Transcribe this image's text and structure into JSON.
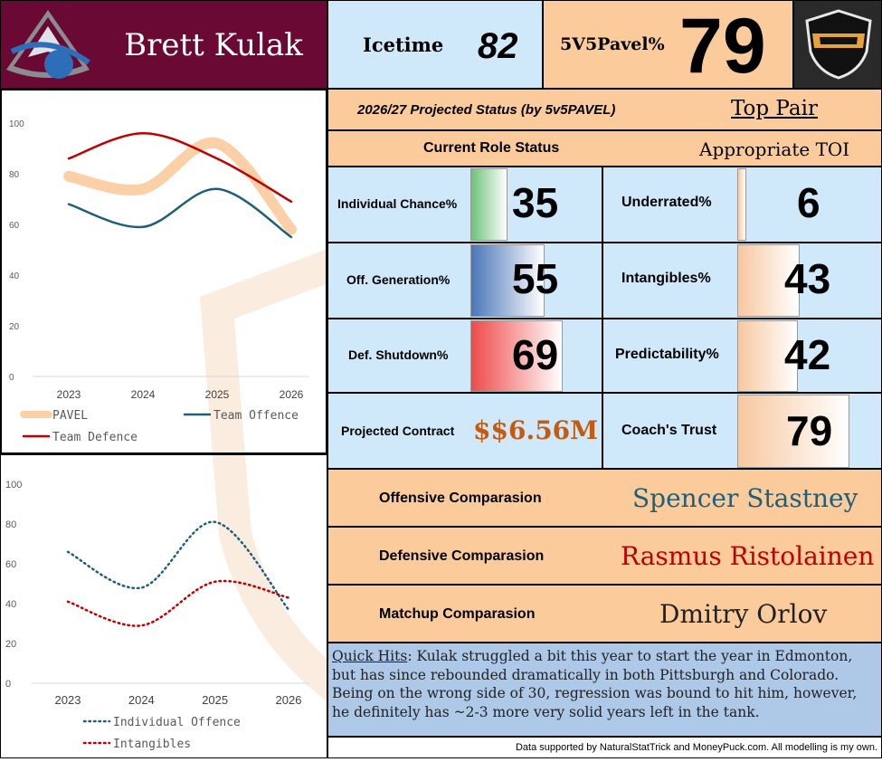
{
  "player": {
    "name": "Brett Kulak"
  },
  "header": {
    "icetime_label": "Icetime",
    "icetime_value": "82",
    "pavel_label": "5V5Pavel%",
    "pavel_value": "79",
    "team_logo_icon": "avalanche-logo-icon",
    "league_logo_icon": "tjdt-shield-logo-icon"
  },
  "status": {
    "projected_label": "2026/27 Projected Status (by 5v5PAVEL)",
    "projected_value": "Top Pair",
    "role_label": "Current Role Status",
    "role_value": "Appropriate TOI"
  },
  "metrics": {
    "individual_chance": {
      "label": "Individual Chance%",
      "value": "35",
      "fill": 0.35,
      "color": "#6cc27a"
    },
    "underrated": {
      "label": "Underrated%",
      "value": "6",
      "fill": 0.06,
      "color": "#f7c8a0"
    },
    "off_generation": {
      "label": "Off. Generation%",
      "value": "55",
      "fill": 0.55,
      "color": "#4a76b8"
    },
    "intangibles": {
      "label": "Intangibles%",
      "value": "43",
      "fill": 0.43,
      "color": "#f7c8a0"
    },
    "def_shutdown": {
      "label": "Def. Shutdown%",
      "value": "69",
      "fill": 0.69,
      "color": "#ee4a4a"
    },
    "predictability": {
      "label": "Predictability%",
      "value": "42",
      "fill": 0.42,
      "color": "#f7c8a0"
    },
    "contract": {
      "label": "Projected Contract",
      "value": "$$6.56M"
    },
    "coach_trust": {
      "label": "Coach's Trust",
      "value": "79",
      "fill": 0.79,
      "color": "#f7c8a0"
    }
  },
  "comparisons": {
    "offensive": {
      "label": "Offensive Comparasion",
      "value": "Spencer Stastney",
      "color": "#1f5f7a"
    },
    "defensive": {
      "label": "Defensive Comparasion",
      "value": "Rasmus Ristolainen",
      "color": "#c00000"
    },
    "matchup": {
      "label": "Matchup Comparasion",
      "value": "Dmitry Orlov",
      "color": "#222222"
    }
  },
  "quick_hits": {
    "label": "Quick Hits",
    "text": ": Kulak struggled a bit this year to start the year in Edmonton, but has since rebounded dramatically in both Pittsburgh and Colorado. Being on the wrong side of 30, regression was bound to hit him, however, he definitely has ~2-3 more very solid years left in the tank."
  },
  "footer": {
    "text": "Data supported by NaturalStatTrick and MoneyPuck.com. All modelling is my own."
  },
  "chart_data": [
    {
      "type": "line",
      "x": [
        "2023",
        "2024",
        "2025",
        "2026"
      ],
      "ylim": [
        0,
        100
      ],
      "yticks": [
        "0",
        "20",
        "40",
        "60",
        "80",
        "100"
      ],
      "legend": "bottom",
      "series": [
        {
          "name": "PAVEL",
          "values": [
            79,
            74,
            92,
            58
          ],
          "color": "#fbc896",
          "style": "thick"
        },
        {
          "name": "Team Offence",
          "values": [
            68,
            59,
            74,
            55
          ],
          "color": "#1f5f7a",
          "style": "solid"
        },
        {
          "name": "Team Defence",
          "values": [
            86,
            96,
            86,
            69
          ],
          "color": "#c00000",
          "style": "solid"
        }
      ]
    },
    {
      "type": "line",
      "x": [
        "2023",
        "2024",
        "2025",
        "2026"
      ],
      "ylim": [
        0,
        100
      ],
      "yticks": [
        "0",
        "20",
        "40",
        "60",
        "80",
        "100"
      ],
      "legend": "bottom",
      "series": [
        {
          "name": "Individual Offence",
          "values": [
            66,
            48,
            81,
            37
          ],
          "color": "#1f5f7a",
          "style": "dotted"
        },
        {
          "name": "Intangibles",
          "values": [
            41,
            29,
            51,
            43
          ],
          "color": "#c00000",
          "style": "dotted"
        }
      ]
    }
  ]
}
